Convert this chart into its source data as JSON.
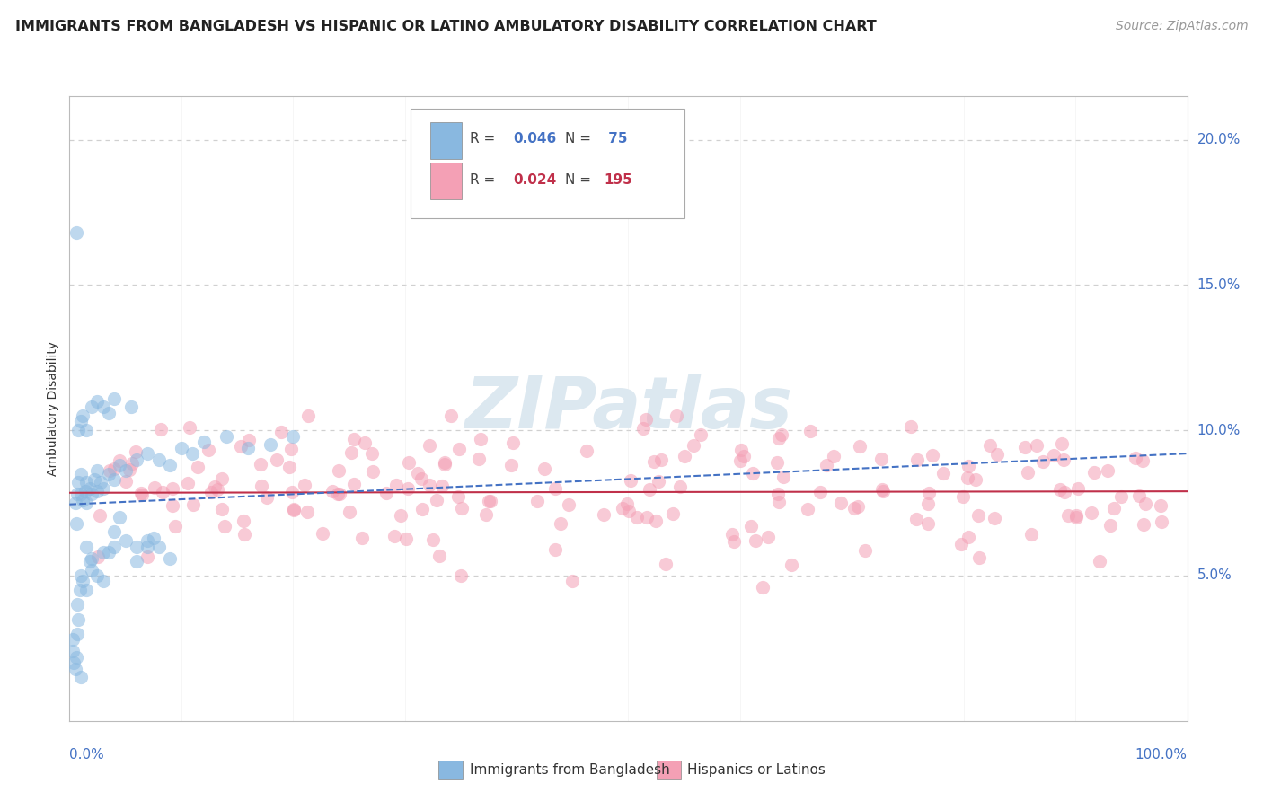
{
  "title": "IMMIGRANTS FROM BANGLADESH VS HISPANIC OR LATINO AMBULATORY DISABILITY CORRELATION CHART",
  "source": "Source: ZipAtlas.com",
  "ylabel": "Ambulatory Disability",
  "ytick_vals": [
    0.05,
    0.1,
    0.15,
    0.2
  ],
  "ytick_labels": [
    "5.0%",
    "10.0%",
    "15.0%",
    "20.0%"
  ],
  "color_blue": "#89b8e0",
  "color_pink": "#f4a0b5",
  "color_blue_line": "#4472c4",
  "color_pink_line": "#c0304a",
  "color_grid": "#d0d0d0",
  "bg_color": "#ffffff",
  "watermark_color": "#dce8f0",
  "xlim": [
    0.0,
    1.0
  ],
  "ylim": [
    0.0,
    0.215
  ],
  "title_fontsize": 11.5,
  "source_fontsize": 10,
  "axis_label_fontsize": 10,
  "ytick_fontsize": 11,
  "xtick_fontsize": 11
}
